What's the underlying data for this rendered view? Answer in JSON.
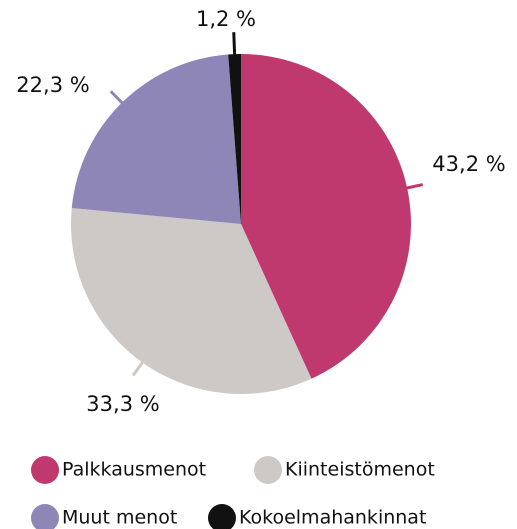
{
  "chart_data": {
    "type": "pie",
    "categories": [
      "Palkkausmenot",
      "Kiinteistömenot",
      "Muut menot",
      "Kokoelmahankinnat"
    ],
    "values": [
      43.2,
      33.3,
      22.3,
      1.2
    ],
    "value_labels": [
      "43,2 %",
      "33,3 %",
      "22,3 %",
      "1,2 %"
    ],
    "colors": [
      "#c0396e",
      "#cdc9c6",
      "#8f86b8",
      "#111111"
    ]
  }
}
